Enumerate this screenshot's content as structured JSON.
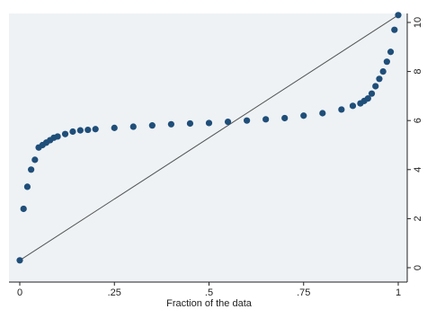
{
  "chart_data": {
    "type": "scatter",
    "title": "",
    "xlabel": "Fraction of the data",
    "ylabel": "",
    "xlim": [
      0,
      1
    ],
    "ylim": [
      0,
      10
    ],
    "xticks": [
      {
        "value": 0,
        "label": "0"
      },
      {
        "value": 0.25,
        "label": ".25"
      },
      {
        "value": 0.5,
        "label": ".5"
      },
      {
        "value": 0.75,
        "label": ".75"
      },
      {
        "value": 1,
        "label": "1"
      }
    ],
    "yticks": [
      {
        "value": 0,
        "label": "0"
      },
      {
        "value": 2,
        "label": "2"
      },
      {
        "value": 4,
        "label": "4"
      },
      {
        "value": 6,
        "label": "6"
      },
      {
        "value": 8,
        "label": "8"
      },
      {
        "value": 10,
        "label": "10"
      }
    ],
    "y_axis_side": "right",
    "grid": false,
    "colors": {
      "points": "#1f4e79",
      "line": "#555555",
      "axis": "#222222",
      "plot_bg": "#eef2f5"
    },
    "reference_line": {
      "x": [
        0,
        1
      ],
      "y": [
        0.3,
        10.3
      ]
    },
    "points": {
      "x": [
        0,
        0.01,
        0.02,
        0.03,
        0.04,
        0.05,
        0.06,
        0.07,
        0.08,
        0.09,
        0.1,
        0.12,
        0.14,
        0.16,
        0.18,
        0.2,
        0.25,
        0.3,
        0.35,
        0.4,
        0.45,
        0.5,
        0.55,
        0.6,
        0.65,
        0.7,
        0.75,
        0.8,
        0.85,
        0.88,
        0.9,
        0.91,
        0.92,
        0.93,
        0.94,
        0.95,
        0.96,
        0.97,
        0.98,
        0.99,
        1.0
      ],
      "y": [
        0.3,
        2.4,
        3.3,
        4.0,
        4.4,
        4.9,
        5.0,
        5.1,
        5.2,
        5.3,
        5.35,
        5.45,
        5.55,
        5.6,
        5.62,
        5.65,
        5.7,
        5.75,
        5.8,
        5.85,
        5.88,
        5.9,
        5.95,
        6.0,
        6.05,
        6.1,
        6.2,
        6.3,
        6.45,
        6.6,
        6.7,
        6.8,
        6.9,
        7.1,
        7.4,
        7.7,
        8.0,
        8.4,
        8.8,
        9.7,
        10.3
      ]
    }
  }
}
